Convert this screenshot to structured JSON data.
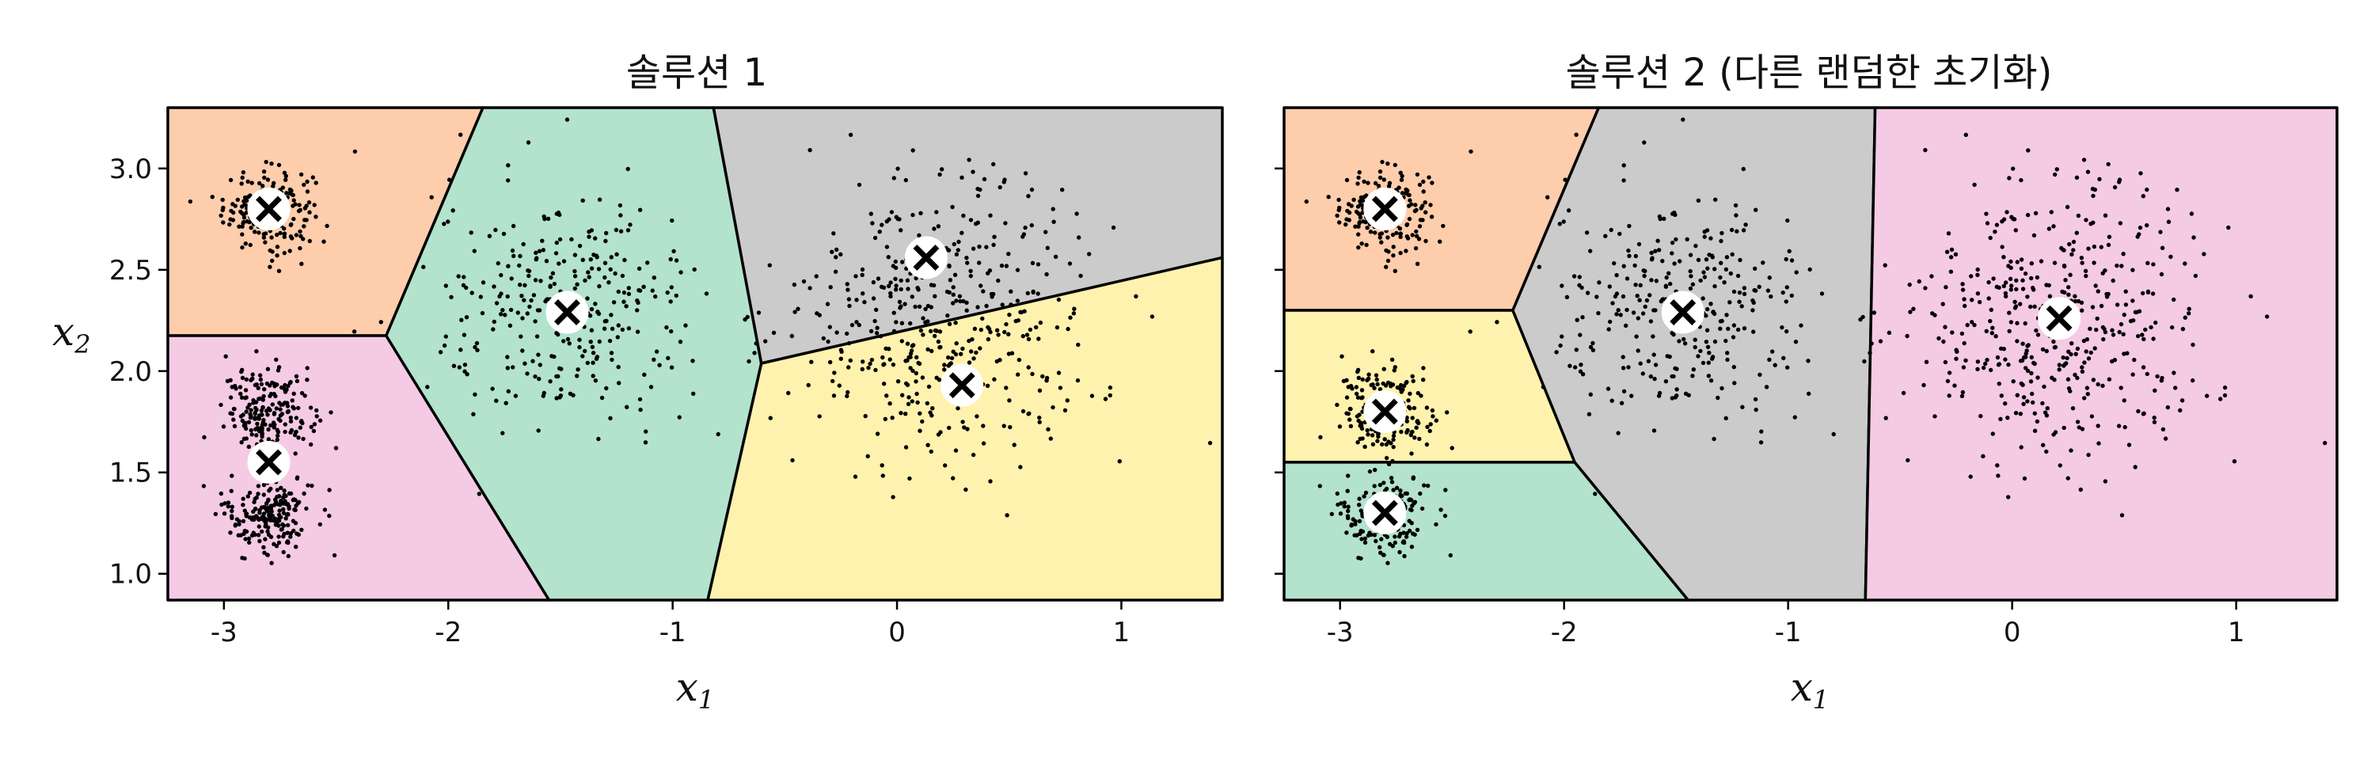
{
  "chart_data": [
    {
      "type": "scatter",
      "title": "솔루션 1",
      "xlabel_main": "x",
      "xlabel_sub": "1",
      "ylabel_main": "x",
      "ylabel_sub": "2",
      "xlim": [
        -3.25,
        1.45
      ],
      "ylim": [
        0.87,
        3.3
      ],
      "xticks": [
        -3,
        -2,
        -1,
        0,
        1
      ],
      "xtick_labels": [
        "-3",
        "-2",
        "-1",
        "0",
        "1"
      ],
      "yticks": [
        1.0,
        1.5,
        2.0,
        2.5,
        3.0
      ],
      "ytick_labels": [
        "1.0",
        "1.5",
        "2.0",
        "2.5",
        "3.0"
      ],
      "centroids": [
        {
          "x": -2.8,
          "y": 2.8,
          "color": "#fdcdac"
        },
        {
          "x": -2.8,
          "y": 1.55,
          "color": "#f4cae4"
        },
        {
          "x": -1.47,
          "y": 2.29,
          "color": "#b3e2cd"
        },
        {
          "x": 0.13,
          "y": 2.56,
          "color": "#cbcbcb"
        },
        {
          "x": 0.29,
          "y": 1.93,
          "color": "#fff2ae"
        }
      ],
      "samples": {
        "blobs": [
          {
            "x": -2.8,
            "y": 2.8,
            "std": 0.1,
            "n": 200
          },
          {
            "x": -2.8,
            "y": 1.8,
            "std": 0.1,
            "n": 200
          },
          {
            "x": -2.8,
            "y": 1.3,
            "std": 0.1,
            "n": 200
          },
          {
            "x": -1.47,
            "y": 2.29,
            "std": 0.3,
            "n": 300
          },
          {
            "x": 0.21,
            "y": 2.25,
            "std": 0.35,
            "n": 450
          }
        ]
      }
    },
    {
      "type": "scatter",
      "title": "솔루션 2 (다른 랜덤한 초기화)",
      "xlabel_main": "x",
      "xlabel_sub": "1",
      "xlim": [
        -3.25,
        1.45
      ],
      "ylim": [
        0.87,
        3.3
      ],
      "xticks": [
        -3,
        -2,
        -1,
        0,
        1
      ],
      "xtick_labels": [
        "-3",
        "-2",
        "-1",
        "0",
        "1"
      ],
      "yticks": [
        1.0,
        1.5,
        2.0,
        2.5,
        3.0
      ],
      "centroids": [
        {
          "x": -2.8,
          "y": 2.8,
          "color": "#fdcdac"
        },
        {
          "x": -2.8,
          "y": 1.8,
          "color": "#fff2ae"
        },
        {
          "x": -2.8,
          "y": 1.3,
          "color": "#b3e2cd"
        },
        {
          "x": -1.47,
          "y": 2.29,
          "color": "#cbcbcb"
        },
        {
          "x": 0.21,
          "y": 2.26,
          "color": "#f4cae4"
        }
      ],
      "samples": {
        "blobs": [
          {
            "x": -2.8,
            "y": 2.8,
            "std": 0.1,
            "n": 200
          },
          {
            "x": -2.8,
            "y": 1.8,
            "std": 0.1,
            "n": 200
          },
          {
            "x": -2.8,
            "y": 1.3,
            "std": 0.1,
            "n": 200
          },
          {
            "x": -1.47,
            "y": 2.29,
            "std": 0.3,
            "n": 300
          },
          {
            "x": 0.21,
            "y": 2.25,
            "std": 0.35,
            "n": 450
          }
        ]
      }
    }
  ]
}
